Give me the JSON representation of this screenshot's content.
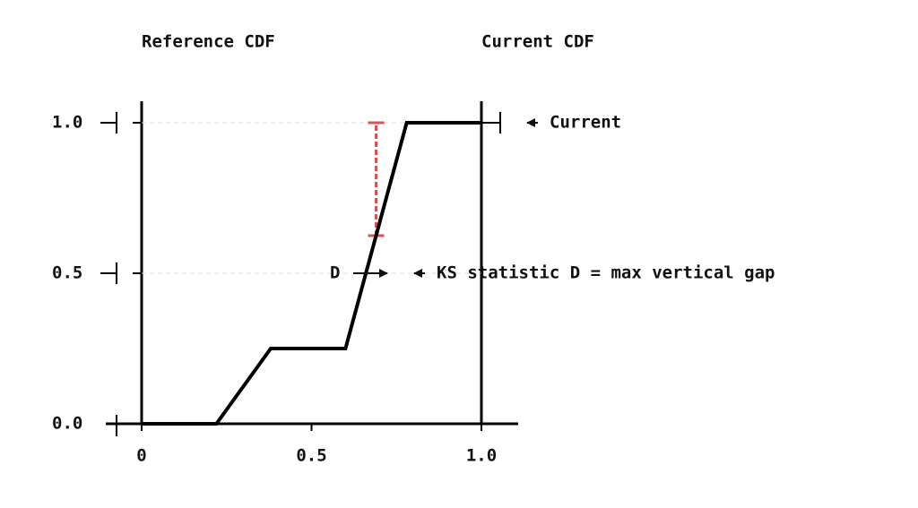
{
  "chart_data": {
    "type": "line",
    "titles": [
      "Reference CDF",
      "Current CDF"
    ],
    "x": [
      0,
      0.22,
      0.38,
      0.6,
      0.78,
      1.0
    ],
    "series": [
      {
        "name": "Current",
        "color": "#000000",
        "values": [
          0,
          0,
          0.25,
          0.25,
          1.0,
          1.0
        ]
      }
    ],
    "gap": {
      "x": 0.69,
      "low": 0.625,
      "high": 1.0,
      "color": "#d9534f"
    },
    "gap_label": "D",
    "annotation": "KS statistic D = max vertical gap",
    "xlim": [
      0,
      1
    ],
    "ylim": [
      0,
      1
    ],
    "xticks": [
      0,
      0.5,
      {
        "value": 1,
        "label": "1.0"
      }
    ],
    "yticks": [
      {
        "value": 0,
        "label": "0.0"
      },
      0.5,
      {
        "value": 1,
        "label": "1.0"
      }
    ],
    "grid": true
  }
}
